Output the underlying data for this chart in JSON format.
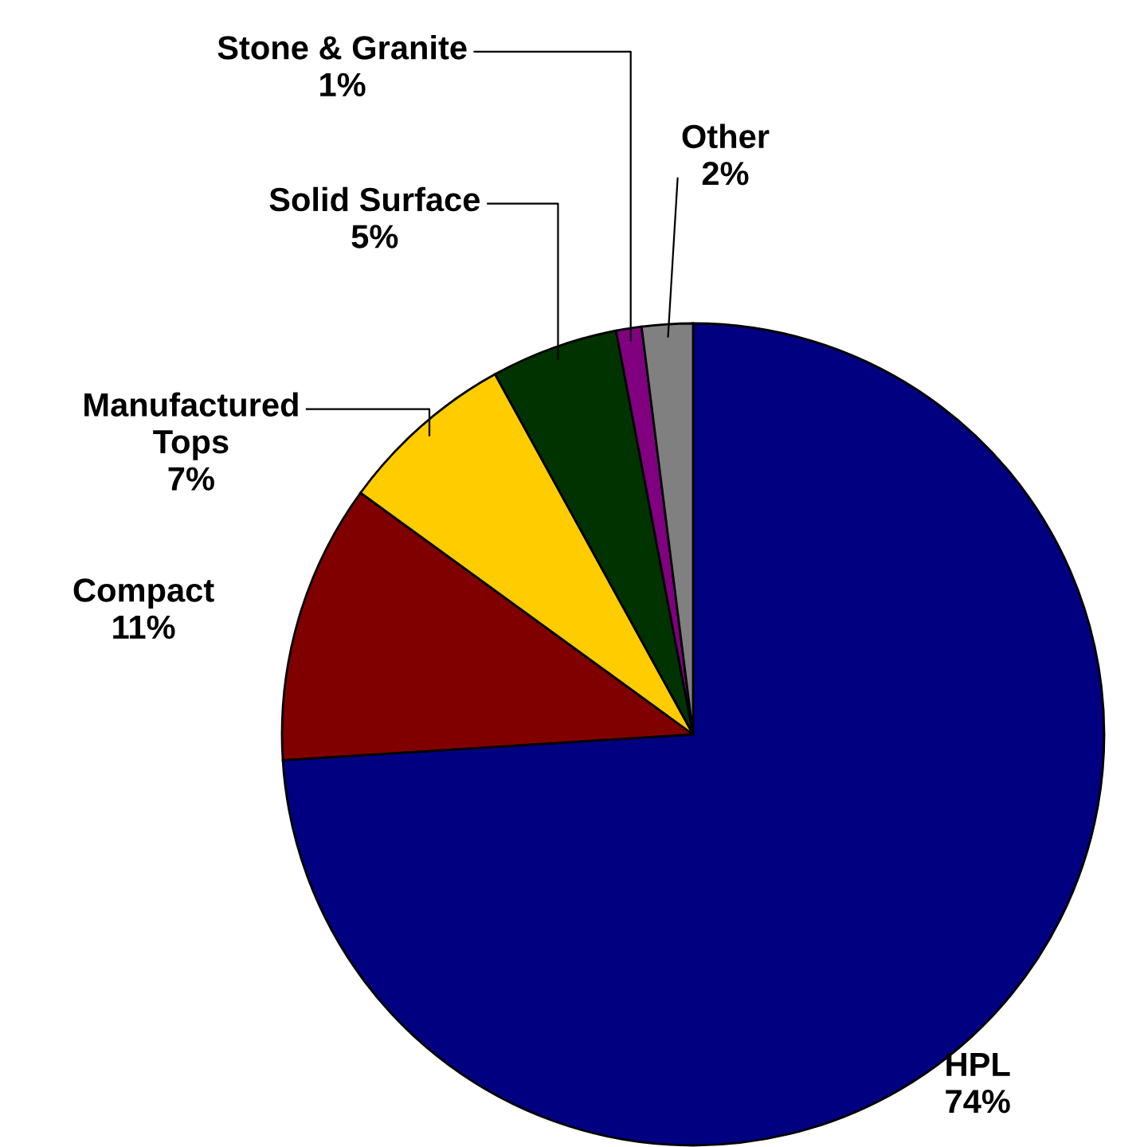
{
  "chart_data": {
    "type": "pie",
    "categories": [
      "HPL",
      "Compact",
      "Manufactured\nTops",
      "Solid Surface",
      "Stone & Granite",
      "Other"
    ],
    "values": [
      74,
      11,
      7,
      5,
      1,
      2
    ],
    "value_labels": [
      "74%",
      "11%",
      "7%",
      "5%",
      "1%",
      "2%"
    ],
    "colors": [
      "#000080",
      "#800000",
      "#ffcc00",
      "#003300",
      "#800080",
      "#808080"
    ]
  }
}
